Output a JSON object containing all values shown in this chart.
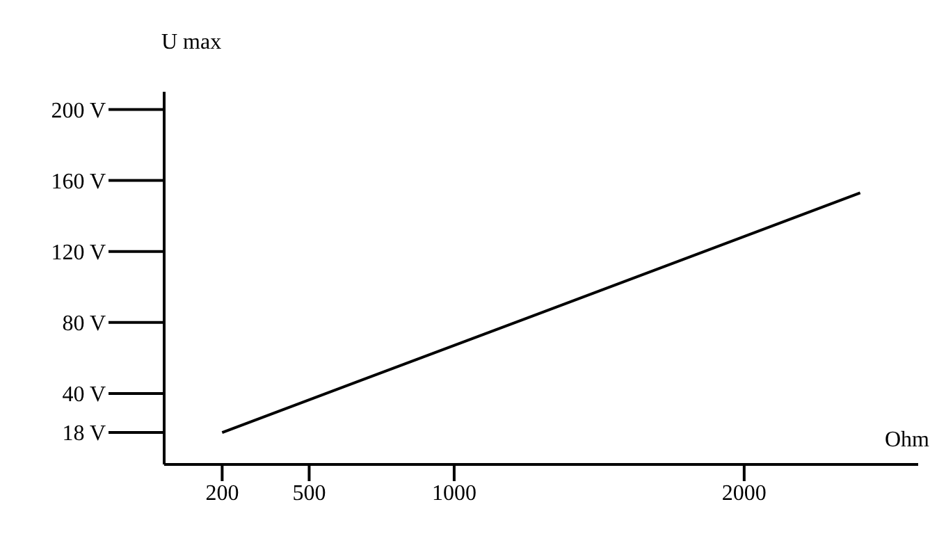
{
  "chart_data": {
    "type": "line",
    "xlabel": "Ohm",
    "ylabel": "U max",
    "x": [
      200,
      2400
    ],
    "series": [
      {
        "color": "#000000",
        "values": [
          18,
          153
        ]
      }
    ],
    "xlim": [
      0,
      2600
    ],
    "xticks": [
      200,
      500,
      1000,
      2000
    ],
    "ylim": [
      0,
      210
    ],
    "yticks": [
      {
        "value": 18,
        "label": "18 V"
      },
      {
        "value": 40,
        "label": "40 V"
      },
      {
        "value": 80,
        "label": "80 V"
      },
      {
        "value": 120,
        "label": "120 V"
      },
      {
        "value": 160,
        "label": "160 V"
      },
      {
        "value": 200,
        "label": "200 V"
      }
    ],
    "marker": "none",
    "line_style": "solid"
  }
}
